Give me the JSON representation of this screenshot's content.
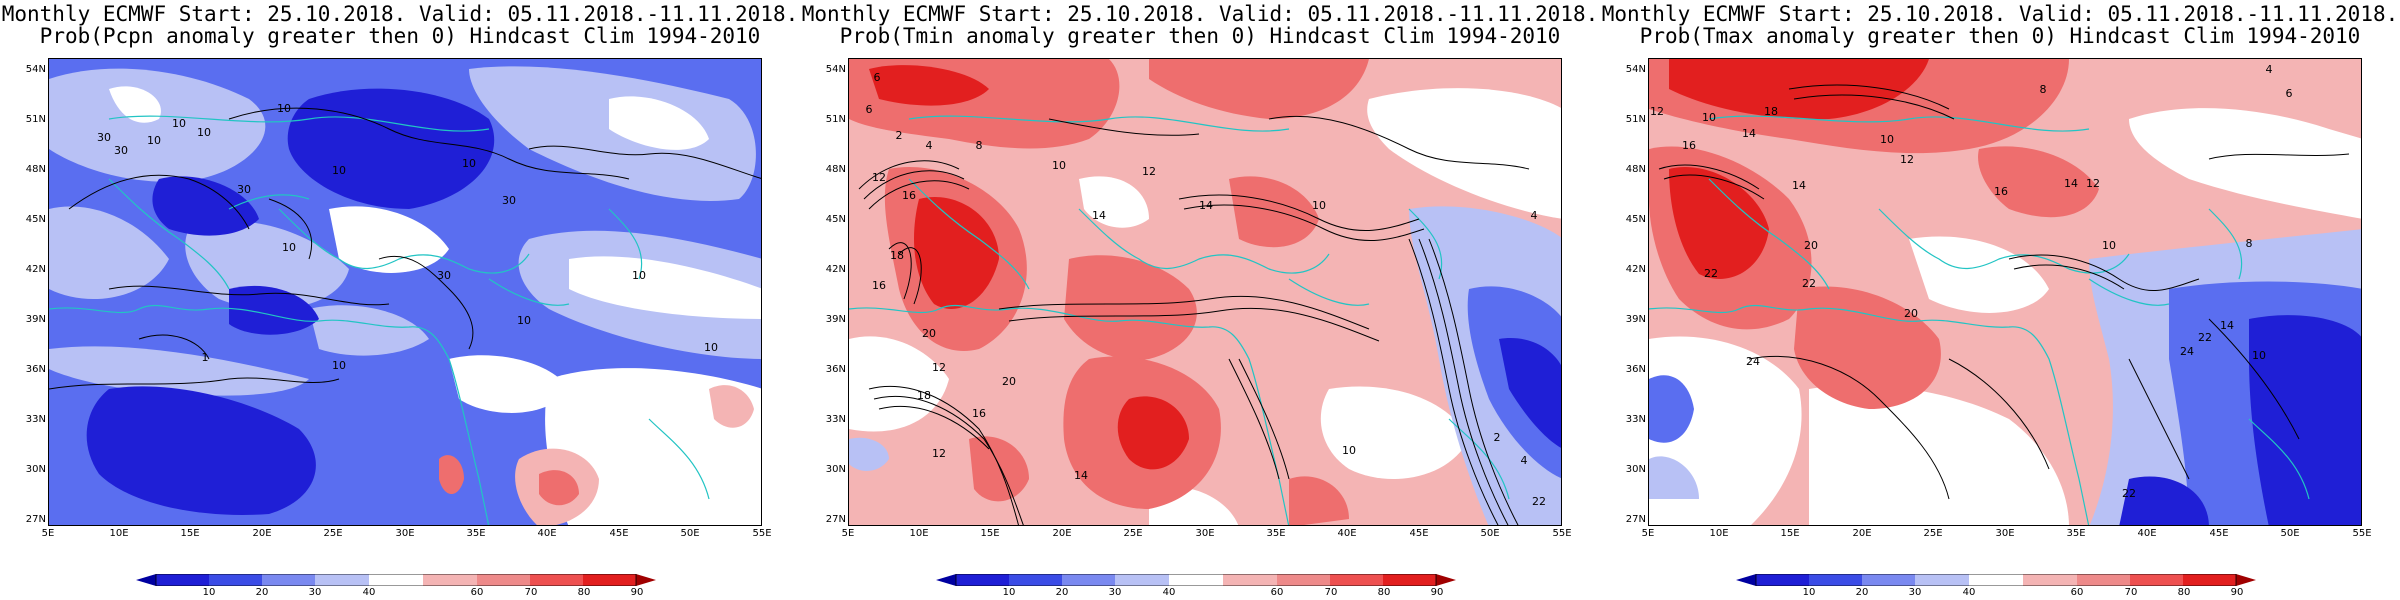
{
  "colors": {
    "blue_dark": "#1f1fd6",
    "blue_mid": "#5a6ef0",
    "blue_light": "#b8c1f5",
    "red_light": "#f4b4b4",
    "red_mid": "#ee6e6e",
    "red_dark": "#e21f1f",
    "coast": "#22c4c4"
  },
  "shared": {
    "lat_labels": [
      "54N",
      "51N",
      "48N",
      "45N",
      "42N",
      "39N",
      "36N",
      "33N",
      "30N",
      "27N"
    ],
    "lon_labels": [
      "5E",
      "10E",
      "15E",
      "20E",
      "25E",
      "30E",
      "35E",
      "40E",
      "45E",
      "50E",
      "55E"
    ],
    "colorbar_labels": [
      "10",
      "20",
      "30",
      "40",
      "60",
      "70",
      "80",
      "90"
    ]
  },
  "panels": [
    {
      "id": "pcpn",
      "title_line1": "Monthly ECMWF Start: 25.10.2018. Valid: 05.11.2018.-11.11.2018.",
      "title_line2": "Prob(Pcpn anomaly greater then 0) Hindcast Clim 1994-2010",
      "contour_labels": [
        "10",
        "10",
        "10",
        "30",
        "30",
        "10",
        "10",
        "10",
        "30",
        "30",
        "10",
        "30",
        "10",
        "10",
        "1",
        "10",
        "10"
      ]
    },
    {
      "id": "tmin",
      "title_line1": "Monthly ECMWF Start: 25.10.2018. Valid: 05.11.2018.-11.11.2018.",
      "title_line2": "Prob(Tmin anomaly greater then 0) Hindcast Clim 1994-2010",
      "contour_labels": [
        "6",
        "6",
        "2",
        "4",
        "12",
        "16",
        "8",
        "10",
        "12",
        "14",
        "14",
        "10",
        "16",
        "18",
        "20",
        "20",
        "12",
        "18",
        "16",
        "14",
        "12",
        "10",
        "4",
        "4",
        "2",
        "22"
      ]
    },
    {
      "id": "tmax",
      "title_line1": "Monthly ECMWF Start: 25.10.2018. Valid: 05.11.2018.-11.11.2018.",
      "title_line2": "Prob(Tmax anomaly greater then 0) Hindcast Clim 1994-2010",
      "contour_labels": [
        "4",
        "6",
        "8",
        "12",
        "10",
        "18",
        "14",
        "16",
        "10",
        "12",
        "14",
        "16",
        "20",
        "22",
        "24",
        "22",
        "20",
        "14",
        "12",
        "10",
        "8",
        "14",
        "22",
        "10",
        "24",
        "22"
      ]
    }
  ]
}
